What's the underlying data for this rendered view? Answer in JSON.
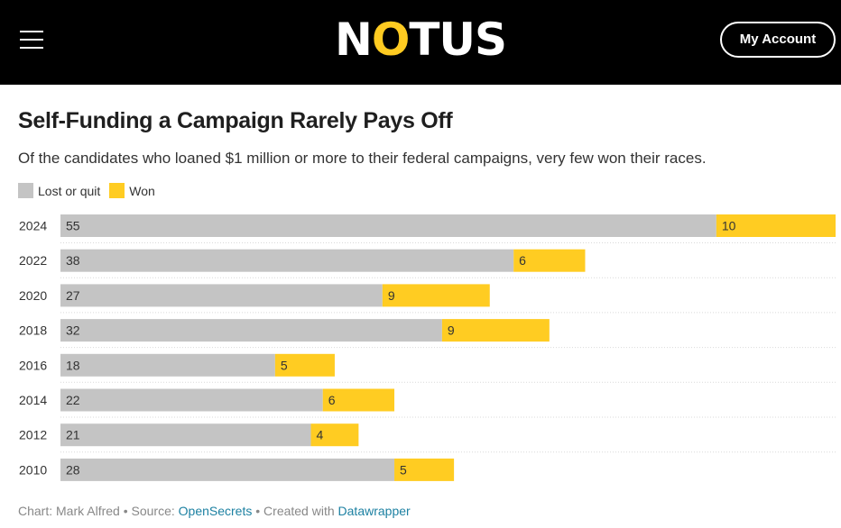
{
  "header": {
    "logo_pre": "N",
    "logo_accent": "O",
    "logo_post": "TUS",
    "account_label": "My Account"
  },
  "chart": {
    "title": "Self-Funding a Campaign Rarely Pays Off",
    "subtitle": "Of the candidates who loaned $1 million or more to their federal campaigns, very few won their races.",
    "legend": {
      "lost_label": "Lost or quit",
      "won_label": "Won"
    }
  },
  "footer": {
    "prefix": "Chart: Mark Alfred • Source: ",
    "source_link": "OpenSecrets",
    "middle": " • Created with ",
    "tool_link": "Datawrapper"
  },
  "colors": {
    "lost": "#c4c4c4",
    "won": "#ffcc22",
    "header_bg": "#000000",
    "accent": "#ffcb21",
    "link": "#1d81a2"
  },
  "chart_data": {
    "type": "bar",
    "orientation": "horizontal",
    "stacked": true,
    "categories": [
      "2024",
      "2022",
      "2020",
      "2018",
      "2016",
      "2014",
      "2012",
      "2010"
    ],
    "series": [
      {
        "name": "Lost or quit",
        "values": [
          55,
          38,
          27,
          32,
          18,
          22,
          21,
          28
        ]
      },
      {
        "name": "Won",
        "values": [
          10,
          6,
          9,
          9,
          5,
          6,
          4,
          5
        ]
      }
    ],
    "xlim": [
      0,
      65
    ],
    "grid": false,
    "legend_position": "top-left"
  }
}
